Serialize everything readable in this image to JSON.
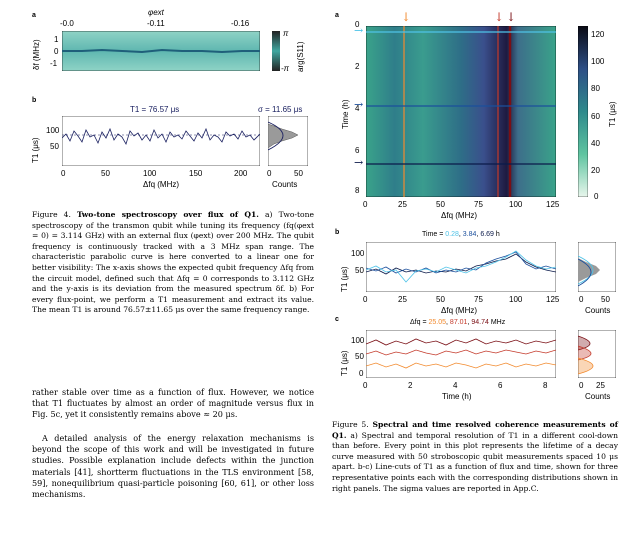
{
  "fig4": {
    "panel_a": {
      "label": "a",
      "top_axis_label": "φext",
      "top_ticks": [
        "-0.0",
        "-0.11",
        "-0.16"
      ],
      "y_label": "δf (MHz)",
      "y_ticks": [
        "1",
        "0",
        "-1"
      ],
      "colorbar_label": "arg(S11)",
      "colorbar_top": "π",
      "colorbar_bottom": "-π"
    },
    "panel_b": {
      "label": "b",
      "mean_text": "T1 = 76.57 μs",
      "sigma_text": "σ = 11.65 μs",
      "y_label": "T1 (μs)",
      "y_ticks": [
        "100",
        "50"
      ],
      "x_ticks": [
        "0",
        "50",
        "100",
        "150",
        "200"
      ],
      "x_label": "Δfq (MHz)",
      "hist_x_ticks": [
        "0",
        "50"
      ],
      "hist_x_label": "Counts"
    },
    "caption_prefix": "Figure 4.",
    "caption_title": "Two-tone spectroscopy over flux of Q1.",
    "caption_body": "a) Two-tone spectroscopy of the transmon qubit while tuning its frequency (fq(φext = 0) = 3.114 GHz) with an external flux (φext) over 200 MHz. The qubit frequency is continuously tracked with a 3 MHz span range. The characteristic parabolic curve is here converted to a linear one for better visibility: The x-axis shows the expected qubit frequency Δfq from the circuit model, defined such that Δfq = 0 corresponds to 3.112 GHz and the y-axis is its deviation from the measured spectrum δf. b) For every flux-point, we perform a T1 measurement and extract its value. The mean T1 is around 76.57±11.65 μs over the same frequency range."
  },
  "body_text": {
    "para1": "rather stable over time as a function of flux. However, we notice that T1 fluctuates by almost an order of magnitude versus flux in Fig. 5c, yet it consistently remains above ≈ 20 μs.",
    "para2": "A detailed analysis of the energy relaxation mechanisms is beyond the scope of this work and will be investigated in future studies. Possible explanation include defects within the junction materials [41], shortterm fluctuations in the TLS environment [58, 59], nonequilibrium quasi-particle poisoning [60, 61], or other loss mechanisms."
  },
  "fig5": {
    "panel_a": {
      "label": "a",
      "y_label": "Time (h)",
      "y_ticks": [
        "0",
        "2",
        "4",
        "6",
        "8"
      ],
      "x_ticks": [
        "0",
        "25",
        "50",
        "75",
        "100",
        "125"
      ],
      "x_label": "Δfq (MHz)",
      "colorbar_ticks": [
        "120",
        "100",
        "80",
        "60",
        "40",
        "20",
        "0"
      ],
      "colorbar_label": "T1 (μs)"
    },
    "panel_b": {
      "label": "b",
      "title_prefix": "Time = ",
      "times": [
        "0.28",
        "3.84",
        "6.69"
      ],
      "title_suffix": " h",
      "y_label": "T1 (μs)",
      "y_ticks": [
        "100",
        "50"
      ],
      "x_ticks": [
        "0",
        "25",
        "50",
        "75",
        "100",
        "125"
      ],
      "x_label": "Δfq (MHz)",
      "hist_x_ticks": [
        "0",
        "50"
      ],
      "hist_x_label": "Counts"
    },
    "panel_c": {
      "label": "c",
      "title_prefix": "Δfq = ",
      "freqs": [
        "25.05",
        "87.01",
        "94.74"
      ],
      "title_suffix": " MHz",
      "y_label": "T1 (μs)",
      "y_ticks": [
        "100",
        "50",
        "0"
      ],
      "x_ticks": [
        "0",
        "2",
        "4",
        "6",
        "8"
      ],
      "x_label": "Time (h)",
      "hist_x_ticks": [
        "0",
        "25"
      ],
      "hist_x_label": "Counts"
    },
    "caption_prefix": "Figure 5.",
    "caption_title": "Spectral and time resolved coherence measurements of Q1.",
    "caption_body": "a) Spectral and temporal resolution of T1 in a different cool-down than before. Every point in this plot represents the lifetime of a decay curve measured with 50 stroboscopic qubit measurements spaced 10 μs apart. b-c) Line-cuts of T1 as a function of flux and time, shown for three representative points each with the corresponding distributions shown in right panels. The sigma values are reported in App.C."
  },
  "colors": {
    "teal": "#3fa7a0",
    "time1": "#4fc3e8",
    "time2": "#1b4f9c",
    "time3": "#0b1a4a",
    "freq1": "#f28a2e",
    "freq2": "#c43a2b",
    "freq3": "#7a0f15",
    "navy": "#1a2060"
  }
}
